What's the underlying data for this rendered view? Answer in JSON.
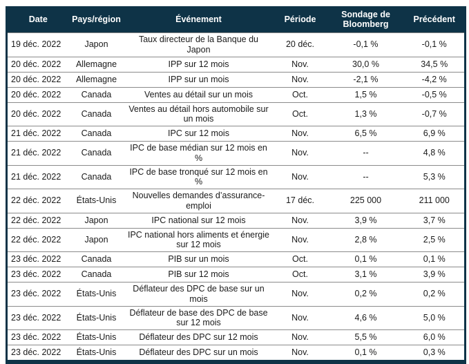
{
  "table": {
    "columns": [
      "Date",
      "Pays/région",
      "Événement",
      "Période",
      "Sondage de Bloomberg",
      "Précédent"
    ],
    "rows": [
      {
        "date": "19 déc. 2022",
        "region": "Japon",
        "event": "Taux directeur de la Banque du Japon",
        "period": "20 déc.",
        "survey": "-0,1 %",
        "previous": "-0,1 %"
      },
      {
        "date": "20 déc. 2022",
        "region": "Allemagne",
        "event": "IPP sur 12 mois",
        "period": "Nov.",
        "survey": "30,0 %",
        "previous": "34,5 %"
      },
      {
        "date": "20 déc. 2022",
        "region": "Allemagne",
        "event": "IPP sur un mois",
        "period": "Nov.",
        "survey": "-2,1 %",
        "previous": "-4,2 %"
      },
      {
        "date": "20 déc. 2022",
        "region": "Canada",
        "event": "Ventes au détail sur un mois",
        "period": "Oct.",
        "survey": "1,5 %",
        "previous": "-0,5 %"
      },
      {
        "date": "20 déc. 2022",
        "region": "Canada",
        "event": "Ventes au détail hors automobile sur un mois",
        "period": "Oct.",
        "survey": "1,3 %",
        "previous": "-0,7 %"
      },
      {
        "date": "21 déc. 2022",
        "region": "Canada",
        "event": "IPC sur 12 mois",
        "period": "Nov.",
        "survey": "6,5 %",
        "previous": "6,9 %"
      },
      {
        "date": "21 déc. 2022",
        "region": "Canada",
        "event": "IPC de base médian sur 12 mois en %",
        "period": "Nov.",
        "survey": "--",
        "previous": "4,8 %"
      },
      {
        "date": "21 déc. 2022",
        "region": "Canada",
        "event": "IPC de base tronqué sur 12 mois en %",
        "period": "Nov.",
        "survey": "--",
        "previous": "5,3 %"
      },
      {
        "date": "22 déc. 2022",
        "region": "États-Unis",
        "event": "Nouvelles demandes d’assurance-emploi",
        "period": "17 déc.",
        "survey": "225 000",
        "previous": "211 000"
      },
      {
        "date": "22 déc. 2022",
        "region": "Japon",
        "event": "IPC national sur 12 mois",
        "period": "Nov.",
        "survey": "3,9 %",
        "previous": "3,7 %"
      },
      {
        "date": "22 déc. 2022",
        "region": "Japon",
        "event": "IPC national hors aliments et énergie sur 12 mois",
        "period": "Nov.",
        "survey": "2,8 %",
        "previous": "2,5 %"
      },
      {
        "date": "23 déc. 2022",
        "region": "Canada",
        "event": "PIB sur un mois",
        "period": "Oct.",
        "survey": "0,1 %",
        "previous": "0,1 %"
      },
      {
        "date": "23 déc. 2022",
        "region": "Canada",
        "event": "PIB sur 12 mois",
        "period": "Oct.",
        "survey": "3,1 %",
        "previous": "3,9 %"
      },
      {
        "date": "23 déc. 2022",
        "region": "États-Unis",
        "event": "Déflateur des DPC de base sur un mois",
        "period": "Nov.",
        "survey": "0,2 %",
        "previous": "0,2 %"
      },
      {
        "date": "23 déc. 2022",
        "region": "États-Unis",
        "event": "Déflateur de base des DPC de base sur 12 mois",
        "period": "Nov.",
        "survey": "4,6 %",
        "previous": "5,0 %"
      },
      {
        "date": "23 déc. 2022",
        "region": "États-Unis",
        "event": "Déflateur des DPC sur 12 mois",
        "period": "Nov.",
        "survey": "5,5 %",
        "previous": "6,0 %"
      },
      {
        "date": "23 déc. 2022",
        "region": "États-Unis",
        "event": "Déflateur des DPC sur un mois",
        "period": "Nov.",
        "survey": "0,1 %",
        "previous": "0,3 %"
      }
    ]
  },
  "colors": {
    "header_bg": "#0e3347",
    "header_text": "#ffffff",
    "row_separator": "#8a8a8a",
    "body_text": "#1a1a1a",
    "page_bg": "#ffffff"
  }
}
